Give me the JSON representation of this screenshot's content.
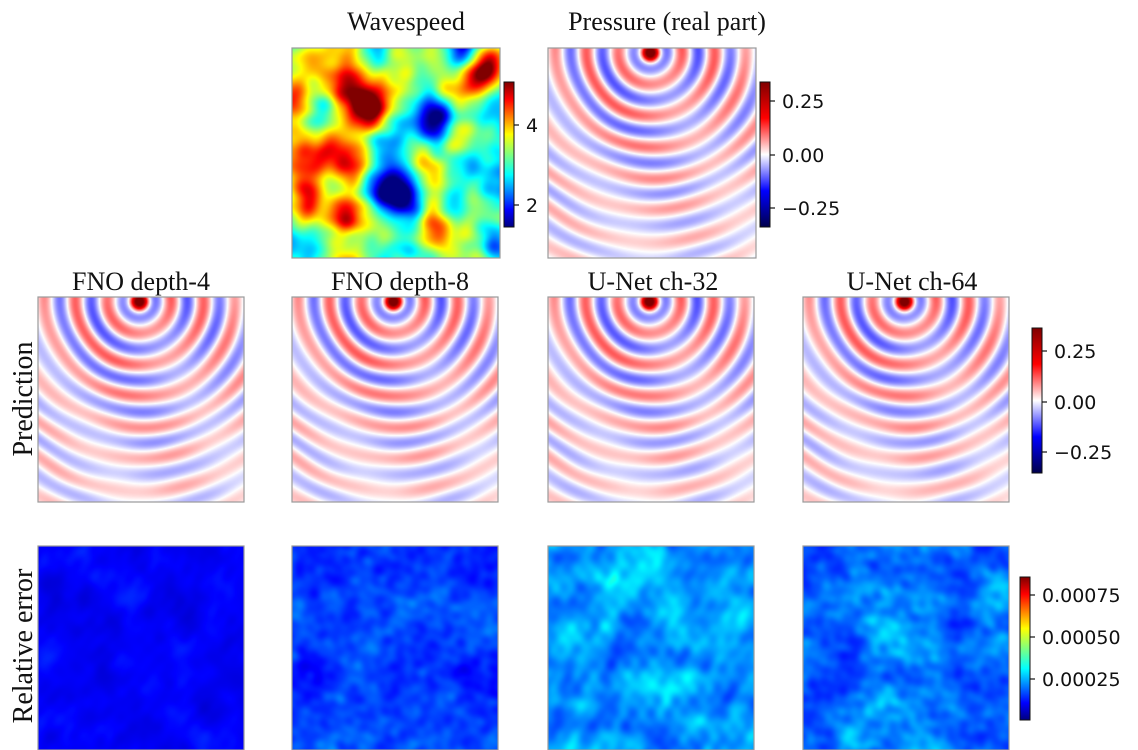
{
  "chart_data": {
    "type": "heatmap",
    "row_labels": [
      "Prediction",
      "Relative error"
    ],
    "panels": [
      {
        "id": "wavespeed",
        "title": "Wavespeed",
        "colormap": "jet",
        "colorbar_ticks": [
          "4",
          "2"
        ],
        "vmin": 1.5,
        "vmax": 5.2
      },
      {
        "id": "pressure",
        "title": "Pressure (real part)",
        "colormap": "seismic",
        "colorbar_ticks": [
          "0.25",
          "0.00",
          "−0.25"
        ],
        "vmin": -0.35,
        "vmax": 0.35
      },
      {
        "id": "pred1",
        "title": "FNO depth-4",
        "row": "Prediction",
        "colormap": "seismic"
      },
      {
        "id": "pred2",
        "title": "FNO depth-8",
        "row": "Prediction",
        "colormap": "seismic"
      },
      {
        "id": "pred3",
        "title": "U-Net ch-32",
        "row": "Prediction",
        "colormap": "seismic"
      },
      {
        "id": "pred4",
        "title": "U-Net ch-64",
        "row": "Prediction",
        "colormap": "seismic"
      },
      {
        "id": "err1",
        "title": "",
        "row": "Relative error",
        "colormap": "jet",
        "level": 0.15
      },
      {
        "id": "err2",
        "title": "",
        "row": "Relative error",
        "colormap": "jet",
        "level": 0.3
      },
      {
        "id": "err3",
        "title": "",
        "row": "Relative error",
        "colormap": "jet",
        "level": 0.5
      },
      {
        "id": "err4",
        "title": "",
        "row": "Relative error",
        "colormap": "jet",
        "level": 0.42
      }
    ],
    "shared_colorbars": {
      "prediction": {
        "colormap": "seismic",
        "ticks": [
          "0.25",
          "0.00",
          "−0.25"
        ],
        "vmin": -0.35,
        "vmax": 0.35
      },
      "error": {
        "colormap": "jet",
        "ticks": [
          "0.00075",
          "0.00050",
          "0.00025"
        ],
        "vmin": 0.0,
        "vmax": 0.00085
      }
    }
  }
}
